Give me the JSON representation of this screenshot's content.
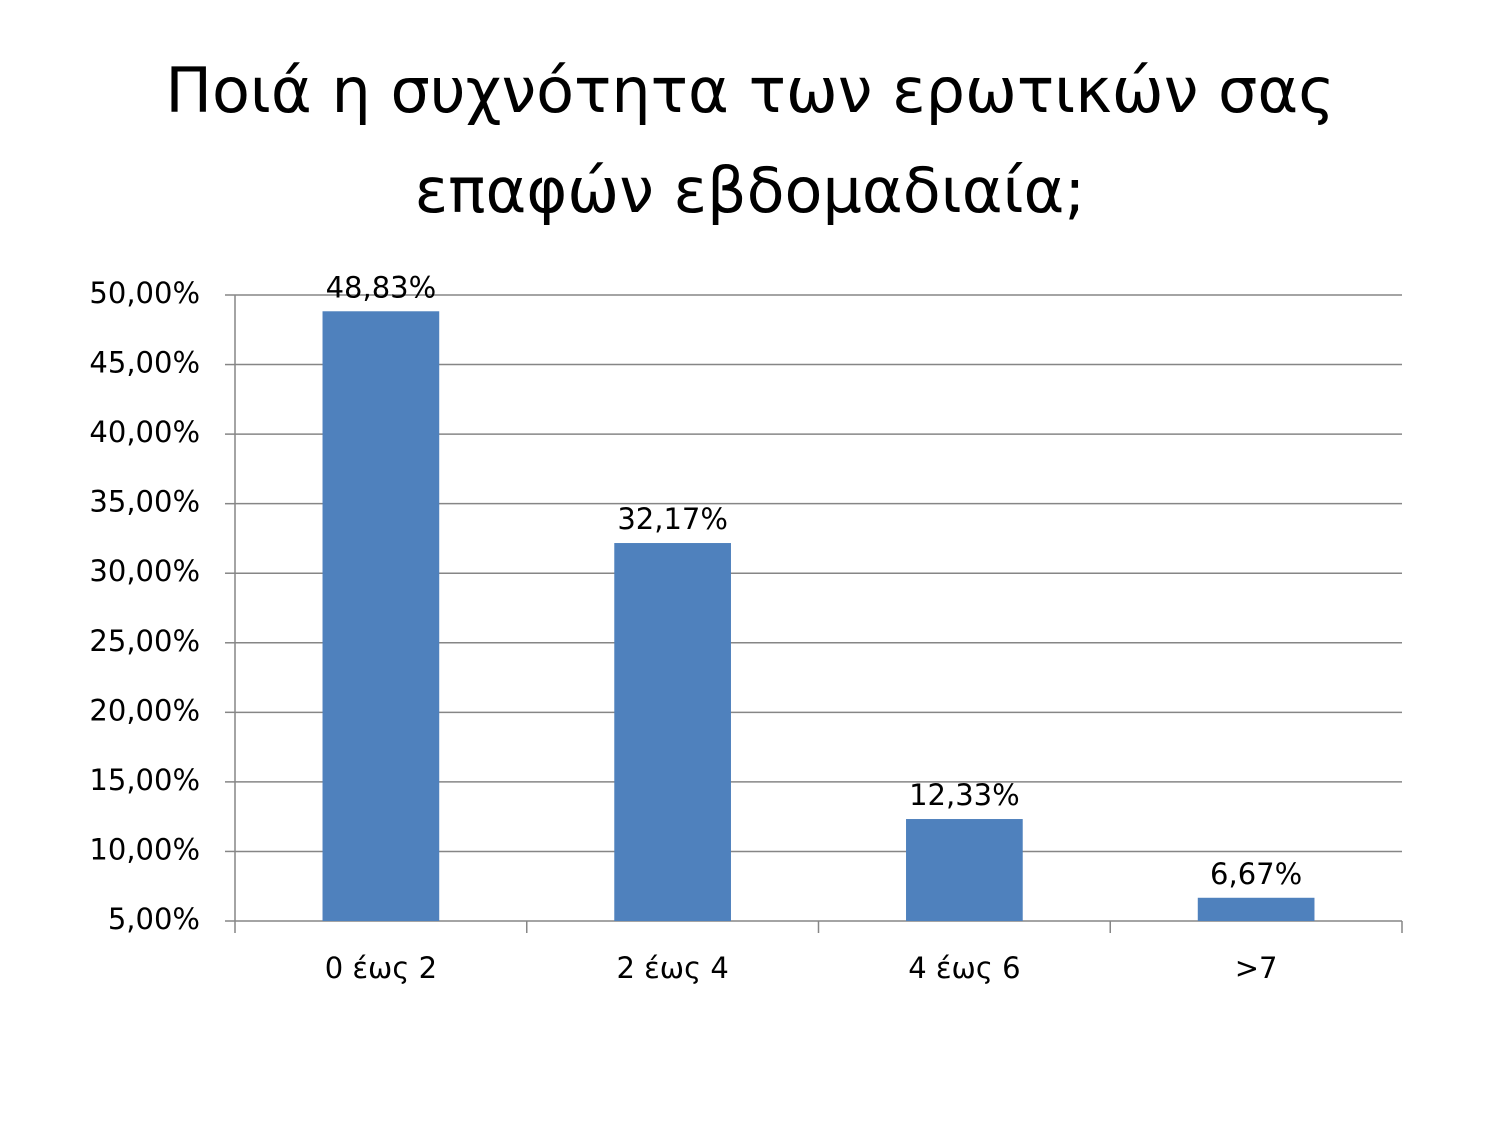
{
  "chart_data": {
    "type": "bar",
    "title": [
      "Ποιά η συχνότητα των ερωτικών σας",
      "επαφών εβδομαδιαία;"
    ],
    "categories": [
      "0 έως 2",
      "2 έως 4",
      "4 έως 6",
      ">7"
    ],
    "values": [
      48.83,
      32.17,
      12.33,
      6.67
    ],
    "value_labels": [
      "48,83%",
      "32,17%",
      "12,33%",
      "6,67%"
    ],
    "color": "#4f81bd",
    "ylim": [
      5,
      50
    ],
    "yticks": [
      {
        "value": 5,
        "label": "5,00%"
      },
      {
        "value": 10,
        "label": "10,00%"
      },
      {
        "value": 15,
        "label": "15,00%"
      },
      {
        "value": 20,
        "label": "20,00%"
      },
      {
        "value": 25,
        "label": "25,00%"
      },
      {
        "value": 30,
        "label": "30,00%"
      },
      {
        "value": 35,
        "label": "35,00%"
      },
      {
        "value": 40,
        "label": "40,00%"
      },
      {
        "value": 45,
        "label": "45,00%"
      },
      {
        "value": 50,
        "label": "50,00%"
      }
    ],
    "grid": true
  }
}
